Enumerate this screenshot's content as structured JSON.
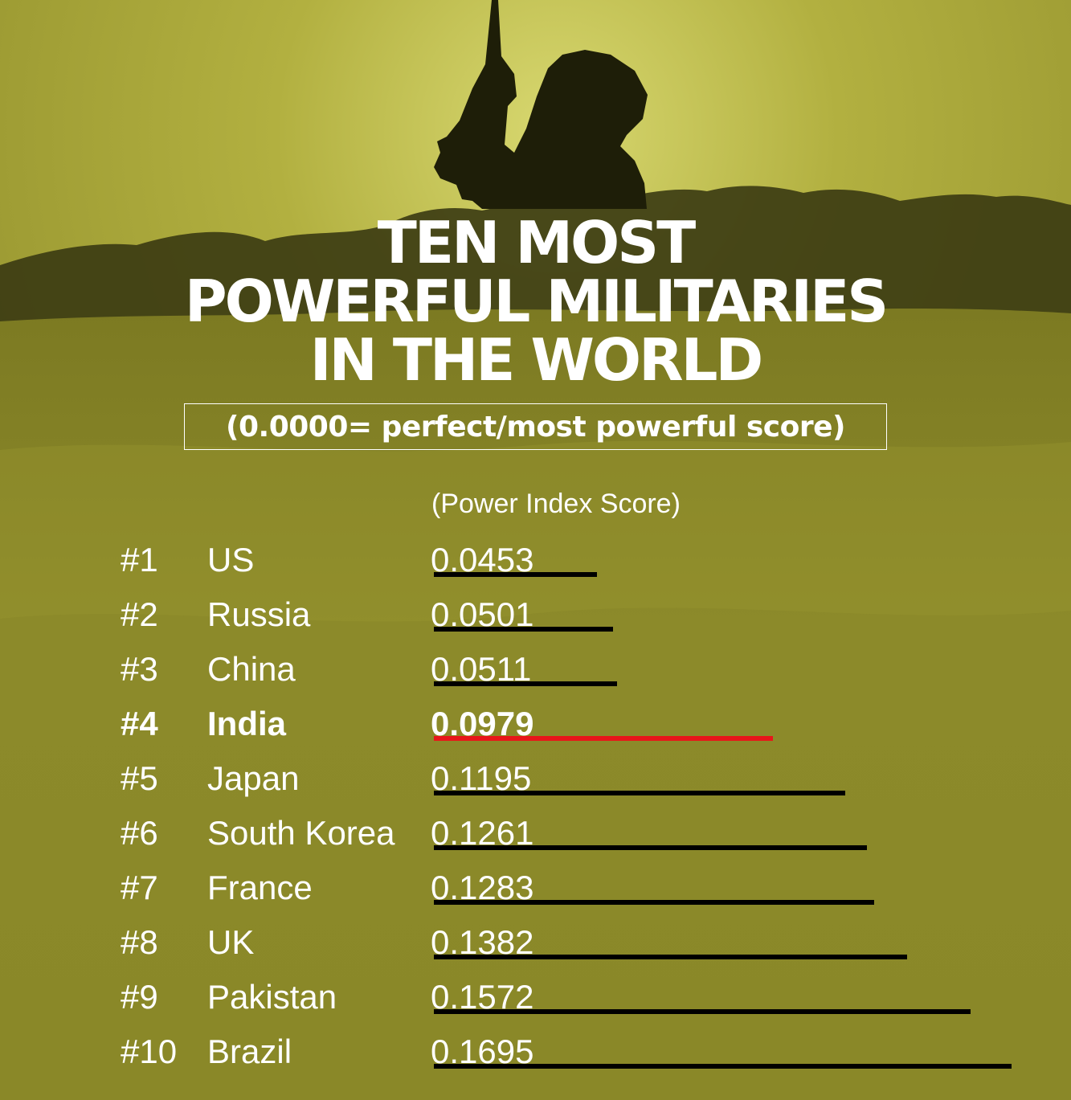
{
  "title_lines": [
    "TEN MOST",
    "POWERFUL MILITARIES",
    "IN THE WORLD"
  ],
  "subtitle": "(0.0000= perfect/most powerful score)",
  "colors": {
    "background": "#8a8828",
    "text": "#ffffff",
    "bar": "#000000",
    "highlight_bar": "#e8161a"
  },
  "chart_data": {
    "type": "bar",
    "orientation": "horizontal",
    "title": "TEN MOST POWERFUL MILITARIES IN THE WORLD",
    "subtitle": "(0.0000= perfect/most powerful score)",
    "value_label": "(Power Index Score)",
    "highlighted": "India",
    "rows": [
      {
        "rank": "#1",
        "country": "US",
        "score": "0.0453",
        "value": 0.0453
      },
      {
        "rank": "#2",
        "country": "Russia",
        "score": "0.0501",
        "value": 0.0501
      },
      {
        "rank": "#3",
        "country": "China",
        "score": "0.0511",
        "value": 0.0511
      },
      {
        "rank": "#4",
        "country": "India",
        "score": "0.0979",
        "value": 0.0979
      },
      {
        "rank": "#5",
        "country": "Japan",
        "score": "0.1195",
        "value": 0.1195
      },
      {
        "rank": "#6",
        "country": "South Korea",
        "score": "0.1261",
        "value": 0.1261
      },
      {
        "rank": "#7",
        "country": "France",
        "score": "0.1283",
        "value": 0.1283
      },
      {
        "rank": "#8",
        "country": "UK",
        "score": "0.1382",
        "value": 0.1382
      },
      {
        "rank": "#9",
        "country": "Pakistan",
        "score": "0.1572",
        "value": 0.1572
      },
      {
        "rank": "#10",
        "country": "Brazil",
        "score": "0.1695",
        "value": 0.1695
      }
    ]
  }
}
